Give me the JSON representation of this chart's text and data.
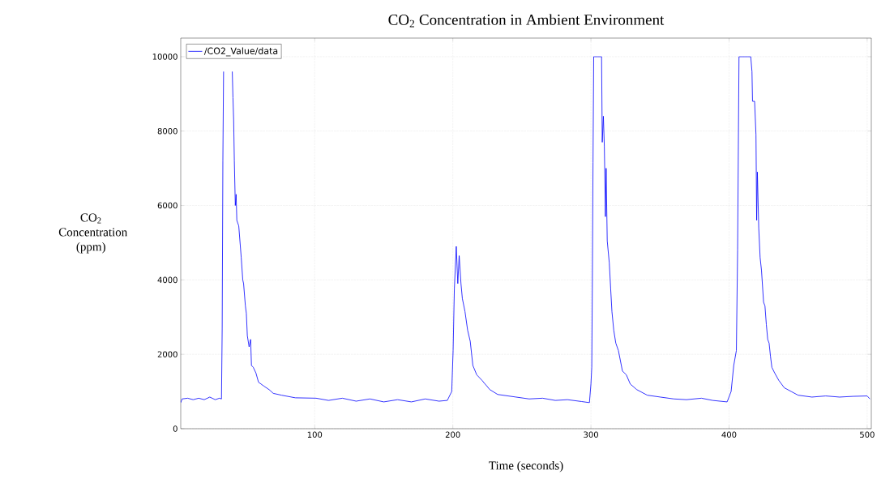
{
  "chart_data": {
    "type": "line",
    "title": "CO$_{2}$ Concentration in Ambient Environment",
    "xlabel": "Time (seconds)",
    "ylabel": "CO$_{2}$ Concentration (ppm)",
    "xlim": [
      3,
      503
    ],
    "ylim": [
      0,
      10500
    ],
    "xticks": [
      100,
      200,
      300,
      400,
      500
    ],
    "yticks": [
      0,
      2000,
      4000,
      6000,
      8000,
      10000
    ],
    "grid": true,
    "legend": "top left",
    "marker": "none",
    "line_style": "solid",
    "x": [
      3,
      4,
      8,
      12,
      16,
      20,
      24,
      28,
      31,
      32.5,
      33,
      33.5,
      34,
      37,
      40.3,
      40.8,
      41.3,
      41.8,
      42.5,
      43.1,
      43.6,
      45,
      46.8,
      47.9,
      48.5,
      49.8,
      50.5,
      51.2,
      52.5,
      53.6,
      54.2,
      55.5,
      57.4,
      59.3,
      63,
      67,
      70,
      76,
      86,
      101,
      110,
      120,
      130,
      140,
      150,
      160,
      170,
      180,
      190,
      196,
      199.2,
      200.2,
      201.1,
      202.5,
      203.6,
      204.6,
      205.9,
      206.9,
      208.8,
      210.7,
      212.6,
      214.5,
      217.3,
      221.1,
      226.8,
      232.5,
      245.8,
      255.3,
      265,
      274.2,
      283,
      293.2,
      298.9,
      300,
      300.6,
      301,
      301.5,
      302,
      307.7,
      308.2,
      309,
      309.7,
      310.5,
      311,
      311.8,
      313.3,
      314.3,
      315.2,
      316.5,
      318,
      319.9,
      322.8,
      325.6,
      328.5,
      333.2,
      340.8,
      350.3,
      360,
      369.2,
      380,
      388.2,
      398.6,
      401.5,
      403.4,
      405.3,
      406.2,
      407.2,
      415.7,
      416.6,
      417,
      418.5,
      419.5,
      420,
      420.5,
      421.5,
      422.5,
      423.5,
      425,
      426,
      427,
      428,
      429,
      430,
      431,
      433,
      436,
      440,
      445,
      450,
      460,
      470,
      480,
      490,
      500,
      502
    ],
    "series": [
      {
        "name": "/CO2_Value/data",
        "color": "#0000ff",
        "values": [
          700,
          800,
          820,
          780,
          820,
          780,
          850,
          780,
          820,
          800,
          2700,
          7200,
          9600,
          null,
          9600,
          8900,
          8300,
          7200,
          6000,
          6300,
          5600,
          5450,
          4600,
          4000,
          3900,
          3300,
          3100,
          2500,
          2200,
          2400,
          1700,
          1650,
          1500,
          1250,
          1150,
          1050,
          950,
          900,
          830,
          820,
          760,
          820,
          740,
          800,
          720,
          780,
          720,
          800,
          740,
          760,
          1000,
          2100,
          3750,
          4900,
          3900,
          4650,
          3900,
          3500,
          3150,
          2650,
          2350,
          1700,
          1450,
          1300,
          1050,
          920,
          850,
          800,
          820,
          760,
          780,
          730,
          700,
          1200,
          1650,
          3750,
          7150,
          10000,
          10000,
          7700,
          8400,
          7600,
          5700,
          7000,
          5050,
          4450,
          3750,
          3150,
          2650,
          2300,
          2100,
          1550,
          1450,
          1200,
          1050,
          900,
          850,
          800,
          780,
          820,
          760,
          720,
          1000,
          1700,
          2100,
          4800,
          10000,
          10000,
          9600,
          8800,
          8800,
          7900,
          5600,
          6900,
          5400,
          4600,
          4250,
          3400,
          3300,
          2800,
          2400,
          2300,
          1950,
          1650,
          1500,
          1300,
          1100,
          1000,
          900,
          850,
          880,
          850,
          870,
          880,
          800
        ]
      }
    ]
  }
}
